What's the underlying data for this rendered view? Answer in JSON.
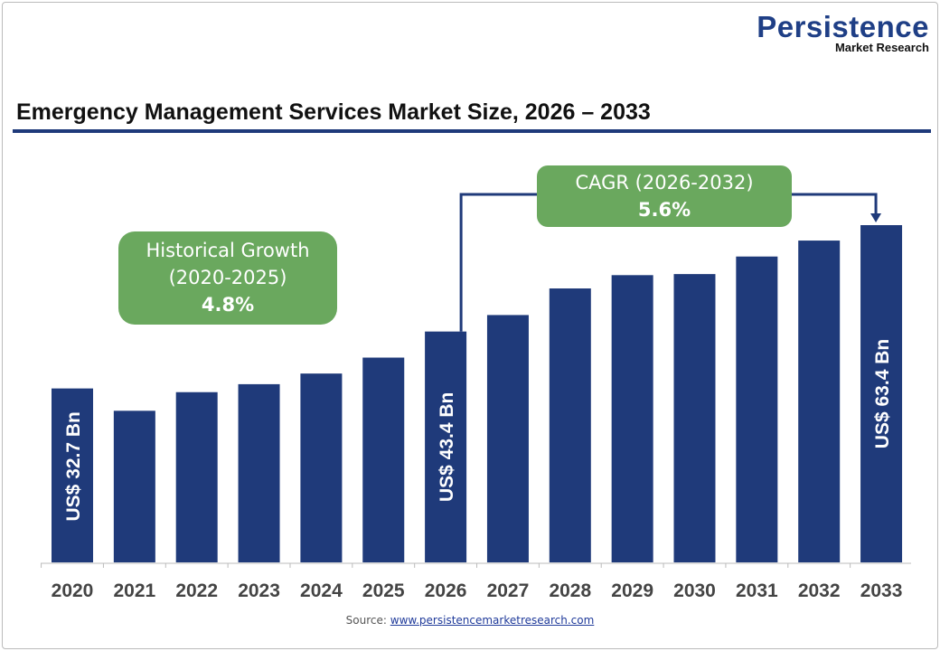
{
  "logo": {
    "line1": "Persistence",
    "line2": "Market Research"
  },
  "chart_data": {
    "type": "bar",
    "title": "Emergency Management Services Market Size, 2026 – 2033",
    "categories": [
      "2020",
      "2021",
      "2022",
      "2023",
      "2024",
      "2025",
      "2026",
      "2027",
      "2028",
      "2029",
      "2030",
      "2031",
      "2032",
      "2033"
    ],
    "values": [
      32.7,
      28.5,
      32.0,
      33.5,
      35.5,
      38.5,
      43.4,
      46.5,
      51.5,
      54.0,
      54.2,
      57.5,
      60.5,
      63.4
    ],
    "unit": "US$ Bn",
    "data_labels": {
      "2020": "US$ 32.7 Bn",
      "2026": "US$ 43.4 Bn",
      "2033": "US$ 63.4 Bn"
    },
    "bar_color": "#1f3a7a",
    "grid": false,
    "annotations": {
      "historical": {
        "line1": "Historical Growth",
        "line2": "(2020-2025)",
        "value": "4.8%"
      },
      "cagr": {
        "line1": "CAGR (2026-2032)",
        "value": "5.6%"
      },
      "callout_color": "#6aa85e"
    }
  },
  "source": {
    "label": "Source:",
    "link": "www.persistencemarketresearch.com"
  }
}
